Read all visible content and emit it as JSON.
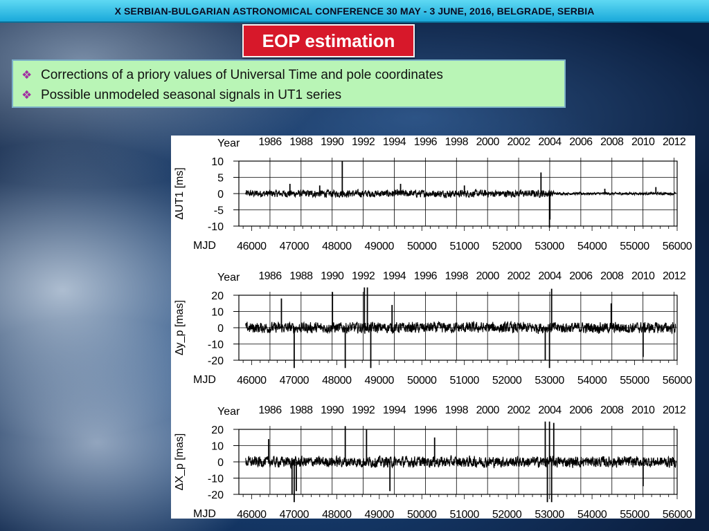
{
  "header": {
    "title": "X SERBIAN-BULGARIAN ASTRONOMICAL CONFERENCE 30 MAY - 3 JUNE, 2016, BELGRADE, SERBIA"
  },
  "slide": {
    "title": "EOP estimation",
    "bullets": [
      {
        "icon": "diamond-bullet-icon",
        "text": "Corrections of  a priory values of Universal Time and pole coordinates"
      },
      {
        "icon": "diamond-bullet-icon",
        "text": " Possible unmodeled seasonal signals  in UT1 series"
      }
    ]
  },
  "colors": {
    "header": "#2fb8e2",
    "title_box": "#d7182a",
    "bullet_box": "#b9f5b6",
    "bullet_icon": "#a230a2",
    "trace": "#000000"
  },
  "chart_data": [
    {
      "type": "line",
      "ylabel": "ΔUT1 [ms]",
      "top_axis_label": "Year",
      "top_ticks": [
        "1986",
        "1988",
        "1990",
        "1992",
        "1994",
        "1996",
        "1998",
        "2000",
        "2002",
        "2004",
        "2006",
        "2008",
        "2010",
        "2012"
      ],
      "xlabel": "MJD",
      "xticks": [
        "46000",
        "47000",
        "48000",
        "49000",
        "50000",
        "51000",
        "52000",
        "53000",
        "54000",
        "55000",
        "56000"
      ],
      "xlim": [
        45700,
        56000
      ],
      "ylim": [
        -10,
        10
      ],
      "yticks": [
        10,
        5,
        0,
        -5,
        -10
      ],
      "grid": true,
      "series": [
        {
          "noise_amplitude": 1.0,
          "x": [
            46900,
            47600,
            48130,
            49500,
            51000,
            52800,
            53000,
            53010,
            54300,
            55500
          ],
          "y": [
            3,
            2.5,
            10,
            3,
            2.5,
            6.5,
            -10.5,
            -8,
            1.5,
            2
          ]
        }
      ]
    },
    {
      "type": "line",
      "ylabel": "Δy_p [mas]",
      "top_axis_label": "Year",
      "top_ticks": [
        "1986",
        "1988",
        "1990",
        "1992",
        "1994",
        "1996",
        "1998",
        "2000",
        "2002",
        "2004",
        "2006",
        "2008",
        "2010",
        "2012"
      ],
      "xlabel": "MJD",
      "xticks": [
        "46000",
        "47000",
        "48000",
        "49000",
        "50000",
        "51000",
        "52000",
        "53000",
        "54000",
        "55000",
        "56000"
      ],
      "xlim": [
        45700,
        56000
      ],
      "ylim": [
        -20,
        20
      ],
      "yticks": [
        20,
        10,
        0,
        -10,
        -20
      ],
      "grid": true,
      "series": [
        {
          "noise_amplitude": 3.0,
          "x": [
            46700,
            47000,
            47900,
            48200,
            48650,
            48720,
            48800,
            49300,
            52900,
            53000,
            53050,
            54450,
            55200
          ],
          "y": [
            18,
            -25,
            22,
            -27,
            28,
            26,
            -28,
            14,
            -20,
            -35,
            24,
            15,
            -18
          ]
        }
      ]
    },
    {
      "type": "line",
      "ylabel": "ΔX_p [mas]",
      "top_axis_label": "Year",
      "top_ticks": [
        "1986",
        "1988",
        "1990",
        "1992",
        "1994",
        "1996",
        "1998",
        "2000",
        "2002",
        "2004",
        "2006",
        "2008",
        "2010",
        "2012"
      ],
      "xlabel": "MJD",
      "xticks": [
        "46000",
        "47000",
        "48000",
        "49000",
        "50000",
        "51000",
        "52000",
        "53000",
        "54000",
        "55000",
        "56000"
      ],
      "xlim": [
        45700,
        56000
      ],
      "ylim": [
        -20,
        20
      ],
      "yticks": [
        20,
        10,
        0,
        -10,
        -20
      ],
      "grid": true,
      "series": [
        {
          "noise_amplitude": 3.0,
          "x": [
            46400,
            46950,
            47000,
            47050,
            48200,
            48700,
            49250,
            50300,
            52900,
            52950,
            53000,
            53050,
            53100,
            55200
          ],
          "y": [
            14,
            -20,
            -35,
            -18,
            22,
            20,
            -18,
            15,
            28,
            -30,
            30,
            -28,
            24,
            -15
          ]
        }
      ]
    }
  ]
}
